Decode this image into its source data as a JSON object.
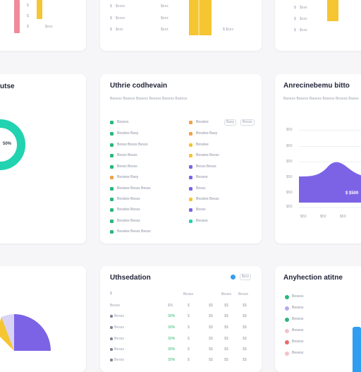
{
  "colors": {
    "teal": "#21d3b0",
    "green": "#29b67a",
    "yellow": "#f5c532",
    "orange": "#f0a24a",
    "purple": "#7c63e6",
    "pink": "#f08a9a",
    "blue": "#2f9ef0",
    "lavender": "#b9a8f3",
    "red": "#e96a6a"
  },
  "top_left": {
    "labels": [
      "$",
      "$",
      "$"
    ]
  },
  "top_mid": {
    "rows": [
      {
        "a": "$",
        "b": "$xxxx",
        "c": "$xxx"
      },
      {
        "a": "$",
        "b": "$xxxx",
        "c": "$xxx"
      },
      {
        "a": "$",
        "b": "$xxx",
        "c": "$xxx"
      }
    ],
    "side_label": "$ $xxx"
  },
  "top_right": {
    "rows": [
      {
        "a": "$",
        "b": "$xxx"
      },
      {
        "a": "$",
        "b": "$xxx"
      },
      {
        "a": "$",
        "b": "$xxx"
      }
    ]
  },
  "mid_left": {
    "title": "utse",
    "center_label": "50%"
  },
  "mid_center": {
    "title": "Uthrie codhevain",
    "subtitle": "Basess Basess Basess Besess Basess Basess",
    "left_items": [
      "Besess",
      "Besslee Basy",
      "Besss Besss Besss",
      "Besss Besss",
      "Besss Besss",
      "Bessiee Basy",
      "Bessiee Besss Besss",
      "Besslee Besss",
      "Besslee Besss",
      "Besslee Besss",
      "Besslee Besss Besss"
    ],
    "right_items": [
      "Besslee",
      "Besslee Basy",
      "Besslee",
      "Bessiee Besss",
      "Besss Besss",
      "Bessee",
      "Besss",
      "Besslee Besss",
      "Besss",
      "Bessee"
    ],
    "pills": [
      "Basy",
      "Besss"
    ]
  },
  "mid_right": {
    "title": "Anrecinebemu bitto",
    "subtitle": "Basess Basess Basess Basess Besess Bases",
    "y_ticks": [
      "$50",
      "$50",
      "$50",
      "$50",
      "$50",
      "$50"
    ],
    "x_ticks": [
      "$50",
      "$50",
      "$50"
    ],
    "value_label": "$ $500"
  },
  "bottom_center": {
    "title": "Uthsedation",
    "badge": "$xxx",
    "top_label": "$",
    "headers": [
      "Besss",
      "Besss",
      "Besss"
    ],
    "columns": [
      "Besss",
      "$%",
      "$",
      "$$",
      "$$",
      "$$"
    ],
    "rows": [
      {
        "name": "Besss",
        "pct": "30%",
        "a": "$",
        "b": "$$",
        "c": "$$",
        "d": "$$"
      },
      {
        "name": "Besss",
        "pct": "30%",
        "a": "$",
        "b": "$$",
        "c": "$$",
        "d": "$$"
      },
      {
        "name": "Besss",
        "pct": "30%",
        "a": "$",
        "b": "$$",
        "c": "$$",
        "d": "$$"
      },
      {
        "name": "Besss",
        "pct": "30%",
        "a": "$",
        "b": "$$",
        "c": "$$",
        "d": "$$"
      },
      {
        "name": "Besss",
        "pct": "30%",
        "a": "$",
        "b": "$$",
        "c": "$$",
        "d": "$$"
      }
    ]
  },
  "bottom_right": {
    "title": "Anyhection atitne",
    "items": [
      "Besess",
      "Besess",
      "Besess",
      "Besess",
      "Besess",
      "Besess"
    ]
  }
}
